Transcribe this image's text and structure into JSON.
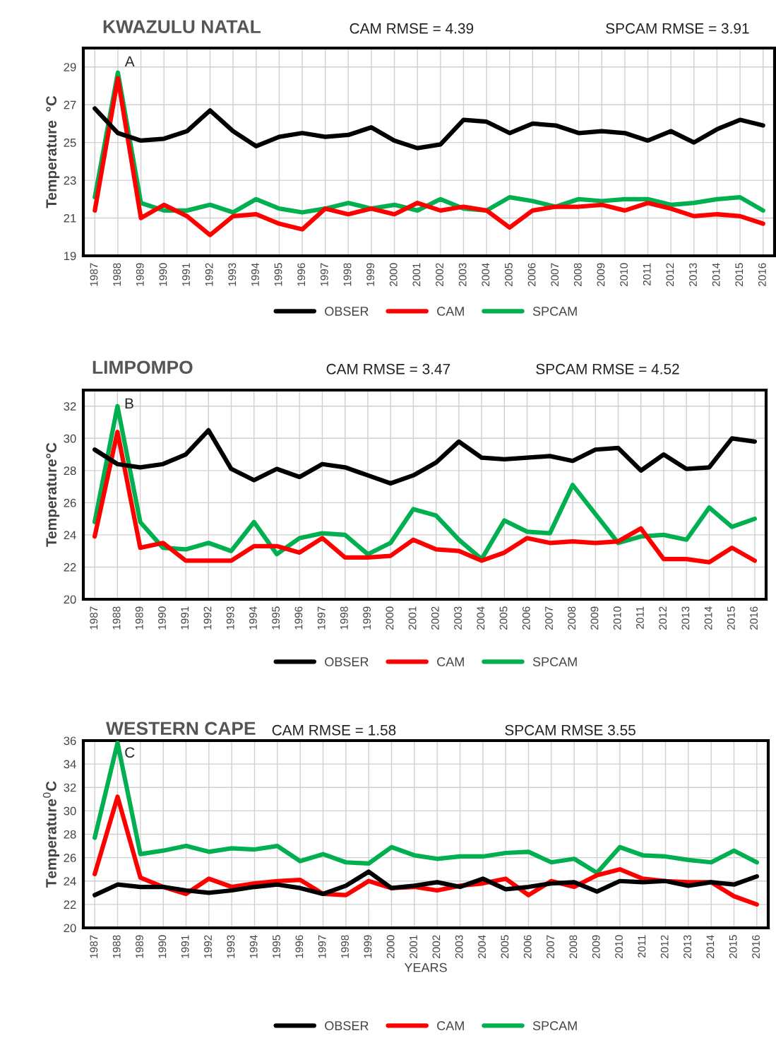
{
  "chart_data": [
    {
      "type": "line",
      "title": "KWAZULU NATAL",
      "ylabel": "Temperature  °C",
      "annotations": [
        "A",
        "CAM RMSE = 4.39",
        "SPCAM RMSE = 3.91"
      ],
      "categories": [
        "1987",
        "1988",
        "1989",
        "1990",
        "1991",
        "1992",
        "1993",
        "1994",
        "1995",
        "1996",
        "1997",
        "1998",
        "1999",
        "2000",
        "2001",
        "2002",
        "2003",
        "2004",
        "2005",
        "2006",
        "2007",
        "2008",
        "2009",
        "2010",
        "2011",
        "2012",
        "2013",
        "2014",
        "2015",
        "2016"
      ],
      "series": [
        {
          "name": "OBSER",
          "color": "#000000",
          "values": [
            26.8,
            25.5,
            25.1,
            25.2,
            25.6,
            26.7,
            25.6,
            24.8,
            25.3,
            25.5,
            25.3,
            25.4,
            25.8,
            25.1,
            24.7,
            24.9,
            26.2,
            26.1,
            25.5,
            26.0,
            25.9,
            25.5,
            25.6,
            25.5,
            25.1,
            25.6,
            25.0,
            25.7,
            26.2,
            25.9
          ]
        },
        {
          "name": "CAM",
          "color": "#ff0000",
          "values": [
            21.4,
            28.4,
            21.0,
            21.7,
            21.1,
            20.1,
            21.1,
            21.2,
            20.7,
            20.4,
            21.5,
            21.2,
            21.5,
            21.2,
            21.8,
            21.4,
            21.6,
            21.4,
            20.5,
            21.4,
            21.6,
            21.6,
            21.7,
            21.4,
            21.8,
            21.5,
            21.1,
            21.2,
            21.1,
            20.7
          ]
        },
        {
          "name": "SPCAM",
          "color": "#00b050",
          "values": [
            22.1,
            28.7,
            21.8,
            21.4,
            21.4,
            21.7,
            21.3,
            22.0,
            21.5,
            21.3,
            21.5,
            21.8,
            21.5,
            21.7,
            21.4,
            22.0,
            21.5,
            21.4,
            22.1,
            21.9,
            21.6,
            22.0,
            21.9,
            22.0,
            22.0,
            21.7,
            21.8,
            22.0,
            22.1,
            21.4
          ]
        }
      ],
      "ylim": [
        19,
        30
      ],
      "yticks": [
        19,
        21,
        23,
        25,
        27,
        29
      ],
      "grid": true,
      "legend": "bottom",
      "line_style": "solid",
      "marker": "none"
    },
    {
      "type": "line",
      "title": "LIMPOMPO",
      "ylabel": "Temperature°C",
      "annotations": [
        "B",
        "CAM RMSE = 3.47",
        "SPCAM RMSE = 4.52"
      ],
      "categories": [
        "1987",
        "1988",
        "1989",
        "1990",
        "1991",
        "1992",
        "1993",
        "1994",
        "1995",
        "1996",
        "1997",
        "1998",
        "1999",
        "2000",
        "2001",
        "2002",
        "2003",
        "2004",
        "2005",
        "2006",
        "2007",
        "2008",
        "2009",
        "2010",
        "2011",
        "2012",
        "2013",
        "2014",
        "2015",
        "2016"
      ],
      "series": [
        {
          "name": "OBSER",
          "color": "#000000",
          "values": [
            29.3,
            28.4,
            28.2,
            28.4,
            29.0,
            30.5,
            28.1,
            27.4,
            28.1,
            27.6,
            28.4,
            28.2,
            27.7,
            27.2,
            27.7,
            28.5,
            29.8,
            28.8,
            28.7,
            28.8,
            28.9,
            28.6,
            29.3,
            29.4,
            28.0,
            29.0,
            28.1,
            28.2,
            30.0,
            29.8
          ]
        },
        {
          "name": "CAM",
          "color": "#ff0000",
          "values": [
            23.9,
            30.4,
            23.2,
            23.5,
            22.4,
            22.4,
            22.4,
            23.3,
            23.3,
            22.9,
            23.8,
            22.6,
            22.6,
            22.7,
            23.7,
            23.1,
            23.0,
            22.4,
            22.9,
            23.8,
            23.5,
            23.6,
            23.5,
            23.6,
            24.4,
            22.5,
            22.5,
            22.3,
            23.2,
            22.4
          ]
        },
        {
          "name": "SPCAM",
          "color": "#00b050",
          "values": [
            24.8,
            32.0,
            24.8,
            23.2,
            23.1,
            23.5,
            23.0,
            24.8,
            22.8,
            23.8,
            24.1,
            24.0,
            22.8,
            23.5,
            25.6,
            25.2,
            23.7,
            22.5,
            24.9,
            24.2,
            24.1,
            27.1,
            25.3,
            23.5,
            23.9,
            24.0,
            23.7,
            25.7,
            24.5,
            25.0
          ]
        }
      ],
      "ylim": [
        20,
        33
      ],
      "yticks": [
        20,
        22,
        24,
        26,
        28,
        30,
        32
      ],
      "grid": true,
      "legend": "bottom",
      "line_style": "solid",
      "marker": "none"
    },
    {
      "type": "line",
      "title": "WESTERN CAPE",
      "ylabel": "Temperature$^{0}$C",
      "xlabel": "YEARS",
      "annotations": [
        "C",
        "CAM RMSE = 1.58",
        "SPCAM RMSE 3.55"
      ],
      "categories": [
        "1987",
        "1988",
        "1989",
        "1990",
        "1991",
        "1992",
        "1993",
        "1994",
        "1995",
        "1996",
        "1997",
        "1998",
        "1999",
        "2000",
        "2001",
        "2002",
        "2003",
        "2004",
        "2005",
        "2006",
        "2007",
        "2008",
        "2009",
        "2010",
        "2011",
        "2012",
        "2013",
        "2014",
        "2015",
        "2016"
      ],
      "series": [
        {
          "name": "OBSER",
          "color": "#000000",
          "values": [
            22.8,
            23.7,
            23.5,
            23.5,
            23.2,
            23.0,
            23.2,
            23.5,
            23.7,
            23.4,
            22.9,
            23.6,
            24.8,
            23.4,
            23.6,
            23.9,
            23.5,
            24.2,
            23.3,
            23.5,
            23.8,
            23.9,
            23.1,
            24.0,
            23.9,
            24.0,
            23.6,
            23.9,
            23.7,
            24.4
          ]
        },
        {
          "name": "CAM",
          "color": "#ff0000",
          "values": [
            24.6,
            31.2,
            24.3,
            23.5,
            22.9,
            24.2,
            23.5,
            23.8,
            24.0,
            24.1,
            22.9,
            22.8,
            24.0,
            23.4,
            23.5,
            23.2,
            23.6,
            23.8,
            24.2,
            22.8,
            24.0,
            23.5,
            24.5,
            25.0,
            24.2,
            24.0,
            23.9,
            23.9,
            22.7,
            22.0
          ]
        },
        {
          "name": "SPCAM",
          "color": "#00b050",
          "values": [
            27.7,
            35.8,
            26.3,
            26.6,
            27.0,
            26.5,
            26.8,
            26.7,
            27.0,
            25.7,
            26.3,
            25.6,
            25.5,
            26.9,
            26.2,
            25.9,
            26.1,
            26.1,
            26.4,
            26.5,
            25.6,
            25.9,
            24.7,
            26.9,
            26.2,
            26.1,
            25.8,
            25.6,
            26.6,
            25.6
          ]
        }
      ],
      "ylim": [
        20,
        36
      ],
      "yticks": [
        20,
        22,
        24,
        26,
        28,
        30,
        32,
        34,
        36
      ],
      "grid": true,
      "legend": "bottom",
      "line_style": "solid",
      "marker": "none"
    }
  ]
}
